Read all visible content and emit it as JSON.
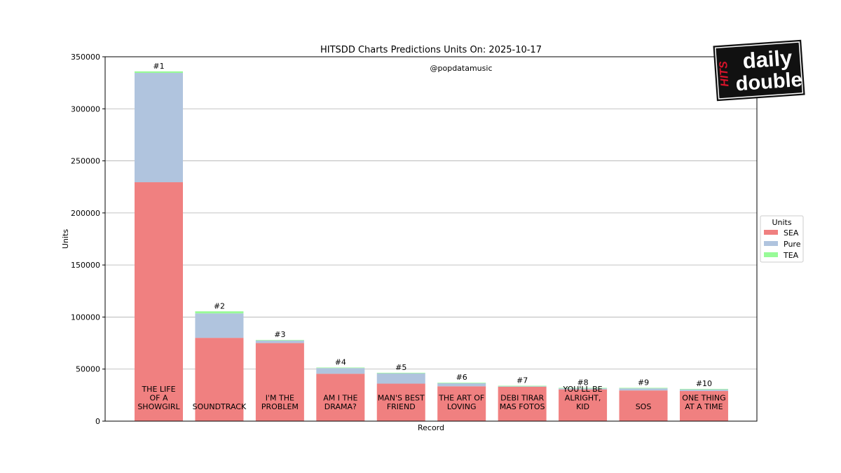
{
  "logo": {
    "top_text": "daily",
    "bottom_text": "double",
    "side_text": "HITS"
  },
  "watermark": "@popdatamusic",
  "chart_data": {
    "type": "bar",
    "stacked": true,
    "title": "HITSDD Charts Predictions Units On: 2025-10-17",
    "xlabel": "Record",
    "ylabel": "Units",
    "ylim": [
      0,
      350000
    ],
    "yticks": [
      0,
      50000,
      100000,
      150000,
      200000,
      250000,
      300000,
      350000
    ],
    "grid": "y",
    "legend": {
      "title": "Units",
      "position": "right"
    },
    "categories": [
      [
        "THE LIFE",
        "OF A",
        "SHOWGIRL"
      ],
      [
        "SOUNDTRACK"
      ],
      [
        "I'M THE",
        "PROBLEM"
      ],
      [
        "AM I THE",
        "DRAMA?"
      ],
      [
        "MAN'S BEST",
        "FRIEND"
      ],
      [
        "THE ART OF",
        "LOVING"
      ],
      [
        "DEBI TIRAR",
        "MAS FOTOS"
      ],
      [
        "YOU'LL BE",
        "ALRIGHT,",
        "KID"
      ],
      [
        "SOS"
      ],
      [
        "ONE THING",
        "AT A TIME"
      ]
    ],
    "ranks": [
      "#1",
      "#2",
      "#3",
      "#4",
      "#5",
      "#6",
      "#7",
      "#8",
      "#9",
      "#10"
    ],
    "series": [
      {
        "name": "SEA",
        "color": "#f08080",
        "values": [
          229500,
          80000,
          75000,
          45500,
          36000,
          33500,
          33000,
          30500,
          29500,
          29000
        ]
      },
      {
        "name": "Pure",
        "color": "#b0c4de",
        "values": [
          105000,
          23500,
          2500,
          5500,
          10000,
          3000,
          500,
          1000,
          2000,
          1500
        ]
      },
      {
        "name": "TEA",
        "color": "#98fb98",
        "values": [
          1500,
          2000,
          500,
          500,
          500,
          500,
          500,
          500,
          500,
          500
        ]
      }
    ]
  }
}
